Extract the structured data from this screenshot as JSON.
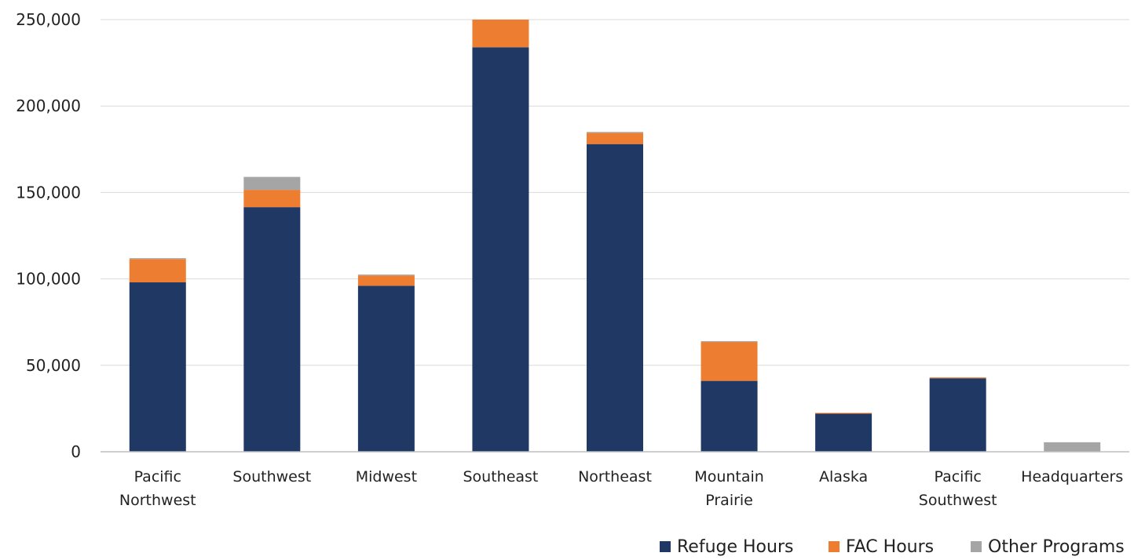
{
  "chart_data": {
    "type": "bar",
    "stacked": true,
    "title": "",
    "xlabel": "",
    "ylabel": "",
    "ylim": [
      0,
      250000
    ],
    "yticks": [
      0,
      50000,
      100000,
      150000,
      200000,
      250000
    ],
    "ytick_labels": [
      "0",
      "50,000",
      "100,000",
      "150,000",
      "200,000",
      "250,000"
    ],
    "grid": true,
    "legend_position": "bottom-right",
    "categories": [
      [
        "Pacific",
        "Northwest"
      ],
      [
        "Southwest"
      ],
      [
        "Midwest"
      ],
      [
        "Southeast"
      ],
      [
        "Northeast"
      ],
      [
        "Mountain",
        "Prairie"
      ],
      [
        "Alaska"
      ],
      [
        "Pacific",
        "Southwest"
      ],
      [
        "Headquarters"
      ]
    ],
    "series": [
      {
        "name": "Refuge Hours",
        "color": "#203864",
        "values": [
          98000,
          141500,
          96000,
          234000,
          178000,
          41000,
          22000,
          42500,
          0
        ]
      },
      {
        "name": "FAC Hours",
        "color": "#ed7d31",
        "values": [
          13500,
          10000,
          6000,
          16000,
          6500,
          22500,
          500,
          500,
          0
        ]
      },
      {
        "name": "Other Programs",
        "color": "#a5a5a5",
        "values": [
          500,
          7500,
          500,
          0,
          500,
          500,
          0,
          0,
          5500
        ]
      }
    ],
    "axis_color": "#bfbfbf",
    "grid_color": "#d9d9d9"
  }
}
